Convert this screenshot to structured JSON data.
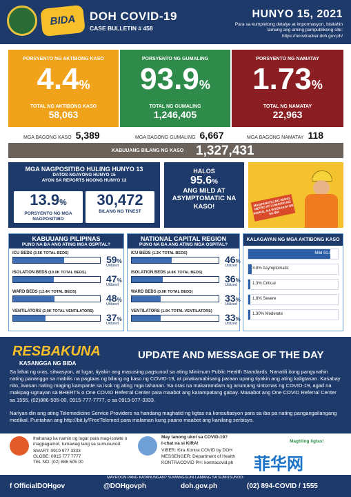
{
  "header": {
    "title": "DOH COVID-19",
    "bulletin": "CASE BULLETIN # 458",
    "date": "HUNYO 15, 2021",
    "note": "Para sa kumpletong detalye at impormasyon, bisitahin lamang ang aming pampublikong site: https://ncovtracker.doh.gov.ph/",
    "bida": "BIDA"
  },
  "stats": [
    {
      "label": "PORSYENTO NG AKTIBONG KASO",
      "pct": "4.4",
      "total_label": "TOTAL NG AKTIBONG KASO",
      "total": "58,063",
      "color": "#f0a21a"
    },
    {
      "label": "PORSYENTO NG GUMALING",
      "pct": "93.9",
      "total_label": "TOTAL NG GUMALING",
      "total": "1,246,405",
      "color": "#2e8b4a"
    },
    {
      "label": "PORSYENTO NG NAMATAY",
      "pct": "1.73",
      "total_label": "TOTAL NG NAMATAY",
      "total": "22,963",
      "color": "#8a1e22"
    }
  ],
  "new": {
    "cases_label": "MGA BAGONG KASO",
    "cases": "5,389",
    "recov_label": "MGA BAGONG GUMALING",
    "recov": "6,667",
    "death_label": "MGA BAGONG NAMATAY",
    "death": "118"
  },
  "total": {
    "label": "KABUUANG BILANG NG KASO",
    "value": "1,327,431"
  },
  "positivity": {
    "title": "MGA NAGPOSITIBO HULING HUNYO 13",
    "sub1": "DATOS NGAYONG HUNYO 15",
    "sub2": "AYON SA REPORTS NOONG HUNYO 13",
    "pct": "13.9",
    "pct_cap": "PORSYENTO NG MGA NAGPOSITIBO",
    "tested": "30,472",
    "tested_cap": "BILANG NG TINEST"
  },
  "halos": {
    "a": "HALOS",
    "pct": "95.6",
    "b": "ANG MILD AT ASYMPTOMATIC NA KASO!"
  },
  "poster": {
    "sign": "MAGPANATILI NG ISANG METRO AT LUMAYAN NG PISIKAL NA INTERAKSYON SA IBA"
  },
  "kabuuan": {
    "title": "KABUUANG PILIPINAS",
    "sub": "PUNO NA BA ANG ATING MGA OSPITAL?",
    "beds": [
      {
        "name": "ICU BEDS",
        "total": "(3.5K TOTAL BEDS)",
        "pct": 59
      },
      {
        "name": "ISOLATION BEDS",
        "total": "(19.0K TOTAL BEDS)",
        "pct": 47
      },
      {
        "name": "WARD BEDS",
        "total": "(12.4K TOTAL BEDS)",
        "pct": 48
      },
      {
        "name": "VENTILATORS",
        "total": "(2.9K TOTAL VENTILATORS)",
        "pct": 37
      }
    ]
  },
  "ncr": {
    "title": "NATIONAL CAPITAL REGION",
    "sub": "PUNO NA BA ANG ATING MGA OSPITAL?",
    "beds": [
      {
        "name": "ICU BEDS",
        "total": "(1.2K TOTAL BEDS)",
        "pct": 46
      },
      {
        "name": "ISOLATION BEDS",
        "total": "(4.8K TOTAL BEDS)",
        "pct": 36
      },
      {
        "name": "WARD BEDS",
        "total": "(3.6K TOTAL BEDS)",
        "pct": 33
      },
      {
        "name": "VENTILATORS",
        "total": "(1.0K TOTAL VENTILATORS)",
        "pct": 33
      }
    ]
  },
  "util_label": "Utilized",
  "kalagayan": {
    "title": "KALAGAYAN NG MGA AKTIBONG KASO",
    "items": [
      {
        "label": "Mild 91.8%",
        "value": 91.8
      },
      {
        "label": "3.8% Asymptomatic",
        "value": 3.8
      },
      {
        "label": "1.3% Critical",
        "value": 1.3
      },
      {
        "label": "1.8% Severe",
        "value": 1.8
      },
      {
        "label": "1.30% Moderate",
        "value": 1.3
      }
    ]
  },
  "update": {
    "res": "RESBAKUNA",
    "res_sub": "KASANGGA NG BIDA",
    "title": "UPDATE AND MESSAGE OF THE DAY",
    "p1": "Sa lahat ng oras, sitwasyon, at lugar, tiyakin ang masusing pagsunod sa ating Minimum Public Health Standards. Nanatili itong pangunahin nating pananggа sa mabilis na pagtaas ng bilang ng kaso ng COVID-19, at pinakamabisang paraan upang tiyakin ang ating kaligtasan. Kasabay nito, iwasan nating maging kampante sa isok ng ating mga tahanan. Sa oras na makaramdam ng anumang sintomas ng COVID-19, agad na makipag-ugnayan sa BHERTS o One COVID Referral Center para maabot ang karampatang gabay. Maaabot ang One COVID Referral Center sa 1555, (02)886-505-00, 0915-777-7777, o sa 0919-977-3333.",
    "p2": "Nariyan din ang ating Telemedicine Service Providers na handang maghatid ng ligtas na konsultasyon para sa iba pa nating pangangailangang medikal. Puntahan ang http://bit.ly/FreeTelemed para malaman kung paano maabot ang kanilang serbisyo."
  },
  "footer": {
    "left1": "Ihahanap ka namin ng lugar para mag-isolate o magpagamot, tumawag lang sa sumusunod:",
    "smart": "SMART: 0919 977 3333",
    "globe": "GLOBE: 0915 777 7777",
    "tel": "TEL NO: (02) 886 505 00",
    "mid1": "May tanong ukol sa COVID-19?",
    "mid2": "I-chat na si KIRA!",
    "viber": "VIBER: Kira Kontra COVID by DOH",
    "messenger": "MESSENGER: Department of Health",
    "kontra": "KONTRACOVID PH: kontracovid.ph",
    "right": "Magtiling ligtas!"
  },
  "bottom": {
    "q": "MAYROON PANG KATANUNGAN? SUMANGGUNI LAMANG SA SUMUSUNOD:",
    "fb": "f OfficialDOHgov",
    "tw": "@DOHgovph",
    "web": "doh.gov.ph",
    "hot": "(02) 894-COVID / 1555"
  },
  "watermark": "菲华网"
}
